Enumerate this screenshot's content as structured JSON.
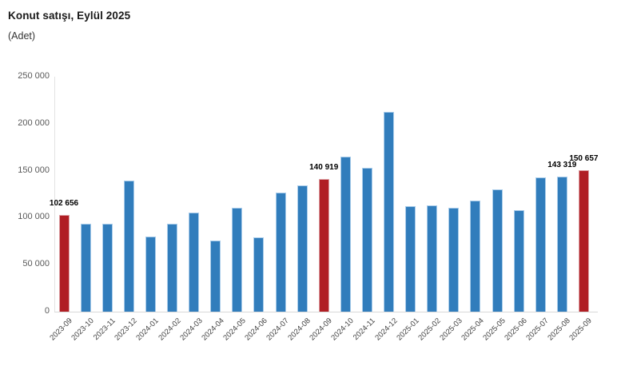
{
  "header": {
    "title": "Konut satışı, Eylül 2025",
    "subtitle": "(Adet)"
  },
  "chart_data": {
    "type": "bar",
    "title": "Konut satışı, Eylül 2025",
    "unit_label": "(Adet)",
    "xlabel": "",
    "ylabel": "Adet",
    "categories": [
      "2023-09",
      "2023-10",
      "2023-11",
      "2023-12",
      "2024-01",
      "2024-02",
      "2024-03",
      "2024-04",
      "2024-05",
      "2024-06",
      "2024-07",
      "2024-08",
      "2024-09",
      "2024-10",
      "2024-11",
      "2024-12",
      "2025-01",
      "2025-02",
      "2025-03",
      "2025-04",
      "2025-05",
      "2025-06",
      "2025-07",
      "2025-08",
      "2025-09"
    ],
    "values": [
      102656,
      93761,
      93514,
      139500,
      80308,
      93902,
      105476,
      75569,
      110588,
      79313,
      127088,
      134155,
      140919,
      165138,
      153014,
      212637,
      112173,
      112818,
      110795,
      118359,
      130025,
      107723,
      142858,
      143319,
      150657
    ],
    "highlighted_categories": [
      "2023-09",
      "2024-09",
      "2025-09"
    ],
    "data_labels": [
      {
        "category": "2023-09",
        "index": 0,
        "text": "102 656"
      },
      {
        "category": "2024-09",
        "index": 12,
        "text": "140 919"
      },
      {
        "category": "2025-08",
        "index": 23,
        "text": "143 319"
      },
      {
        "category": "2025-09",
        "index": 24,
        "text": "150 657"
      }
    ],
    "ylim": [
      0,
      250000
    ],
    "ytick_labels": [
      "0",
      "50 000",
      "100 000",
      "150 000",
      "200 000",
      "250 000"
    ],
    "ytick_values": [
      0,
      50000,
      100000,
      150000,
      200000,
      250000
    ],
    "grid": false,
    "legend": "none",
    "colors": {
      "bar_default": "#317dbc",
      "bar_default_border": "#a9ccea",
      "bar_highlight": "#b01e24",
      "bar_highlight_border": "#dca0a3",
      "axis_line": "#d9d9d9",
      "tick_text": "#595959",
      "label_text": "#000000"
    }
  }
}
